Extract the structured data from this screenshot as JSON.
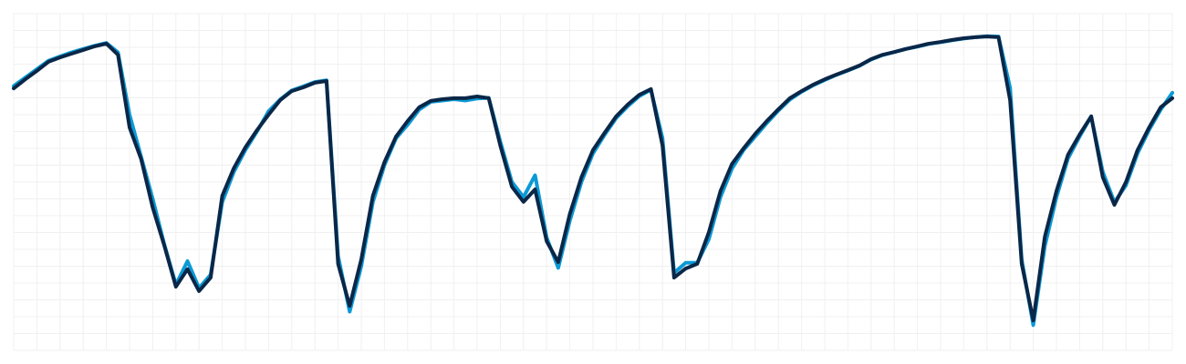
{
  "chart_data": {
    "type": "line",
    "x": [
      0,
      1,
      2,
      3,
      4,
      5,
      6,
      7,
      8,
      9,
      10,
      11,
      12,
      13,
      14,
      15,
      16,
      17,
      18,
      19,
      20,
      21,
      22,
      23,
      24,
      25,
      26,
      27,
      28,
      29,
      30,
      31,
      32,
      33,
      34,
      35,
      36,
      37,
      38,
      39,
      40,
      41,
      42,
      43,
      44,
      45,
      46,
      47,
      48,
      49,
      50,
      51,
      52,
      53,
      54,
      55,
      56,
      57,
      58,
      59,
      60,
      61,
      62,
      63,
      64,
      65,
      66,
      67,
      68,
      69,
      70,
      71,
      72,
      73,
      74,
      75,
      76,
      77,
      78,
      79,
      80,
      81,
      82,
      83,
      84,
      85,
      86,
      87,
      88,
      89,
      90,
      91,
      92,
      93,
      94,
      95,
      96,
      97,
      98,
      99,
      100
    ],
    "series": [
      {
        "color": "#0a9ad6",
        "width": 4,
        "values": [
          78.5,
          81,
          83.5,
          86,
          87.3,
          88.5,
          89.5,
          90.5,
          91.3,
          88.5,
          70,
          57.5,
          45,
          31.5,
          19.5,
          26.5,
          18.5,
          22.5,
          44,
          53,
          59.5,
          65,
          71,
          74.5,
          77.2,
          78.4,
          79.7,
          80.2,
          28,
          11.5,
          25,
          44,
          55,
          63,
          67,
          71.5,
          73.8,
          74.2,
          74.6,
          74.2,
          74.8,
          75,
          62,
          50,
          45.5,
          52,
          33.5,
          24.5,
          38.5,
          50,
          58.5,
          64,
          69,
          72.5,
          75.5,
          77.4,
          63,
          23,
          26,
          26,
          33,
          45.5,
          54,
          59.5,
          63.5,
          67.5,
          71.2,
          74.5,
          76.8,
          78.7,
          80.3,
          81.8,
          83.1,
          84.5,
          86.4,
          87.7,
          88.6,
          89.5,
          90.2,
          91,
          91.5,
          92.1,
          92.6,
          93,
          93.3,
          93.2,
          78,
          27,
          7.5,
          31,
          45.5,
          57,
          63.5,
          69.5,
          53,
          44,
          49,
          58.5,
          65.5,
          71.5,
          76.5
        ]
      },
      {
        "color": "#0a2748",
        "width": 4,
        "values": [
          77.8,
          80.5,
          83,
          85.7,
          87,
          88.1,
          89.2,
          90.3,
          91.1,
          87.8,
          66.2,
          56.8,
          42.4,
          31.1,
          18.9,
          24.1,
          17.6,
          21.6,
          45.9,
          54.1,
          60.3,
          65.4,
          70,
          74.3,
          77,
          78.1,
          79.5,
          80,
          25.7,
          13.2,
          27,
          45.9,
          55.9,
          63.5,
          68.1,
          72.2,
          74.1,
          74.6,
          74.9,
          74.9,
          75.4,
          74.9,
          60.8,
          48.6,
          44.1,
          47.8,
          32.4,
          26.2,
          40.5,
          51.4,
          59.5,
          64.6,
          69.5,
          73,
          75.9,
          77.6,
          60.8,
          21.6,
          24.3,
          25.7,
          35.1,
          47.3,
          55.4,
          60,
          64.3,
          68.1,
          71.6,
          74.9,
          77,
          78.9,
          80.5,
          81.9,
          83.2,
          84.6,
          86.5,
          87.8,
          88.6,
          89.5,
          90.3,
          91.1,
          91.6,
          92.2,
          92.7,
          93,
          93.2,
          93,
          74.3,
          25.7,
          8.9,
          33.8,
          47.3,
          58.1,
          64.1,
          69.5,
          51.4,
          43.2,
          50,
          59.5,
          66.2,
          72.2,
          74.9
        ]
      }
    ],
    "xlim": [
      0,
      100
    ],
    "ylim": [
      0,
      100
    ],
    "xticks": [
      0,
      2,
      4,
      6,
      8,
      10,
      12,
      14,
      16,
      18,
      20,
      22,
      24,
      26,
      28,
      30,
      32,
      34,
      36,
      38,
      40,
      42,
      44,
      46,
      48,
      50,
      52,
      54,
      56,
      58,
      60,
      62,
      64,
      66,
      68,
      70,
      72,
      74,
      76,
      78,
      80,
      82,
      84,
      86,
      88,
      90,
      92,
      94,
      96,
      98,
      100
    ],
    "yticks": [
      0,
      5,
      10,
      15,
      20,
      25,
      30,
      35,
      40,
      45,
      50,
      55,
      60,
      65,
      70,
      75,
      80,
      85,
      90,
      95,
      100
    ],
    "grid": true,
    "grid_color": "#f0f0f0"
  }
}
